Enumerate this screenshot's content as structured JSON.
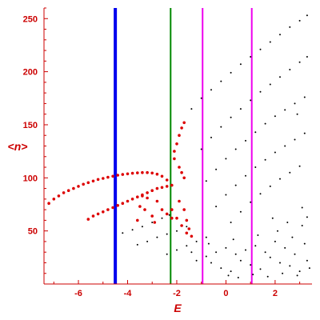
{
  "chart_data": {
    "type": "scatter",
    "title": "",
    "xlabel": "E",
    "ylabel": "<n>",
    "xlim": [
      -7.4,
      3.5
    ],
    "ylim": [
      0,
      260
    ],
    "x_ticks": [
      -6,
      -4,
      -2,
      0,
      2
    ],
    "x_tick_labels": [
      "-6",
      "-4",
      "-2",
      "0",
      "2"
    ],
    "y_ticks": [
      50,
      100,
      150,
      200,
      250
    ],
    "y_tick_labels": [
      "50",
      "100",
      "150",
      "200",
      "250"
    ],
    "grid": false,
    "axis_color": "#cc0000",
    "vertical_lines": [
      {
        "x": -4.5,
        "color": "#0000ee",
        "width": "thick"
      },
      {
        "x": -2.25,
        "color": "#008800",
        "width": "medium"
      },
      {
        "x": -0.95,
        "color": "#ee00ee",
        "width": "medium"
      },
      {
        "x": 1.05,
        "color": "#ee00ee",
        "width": "medium"
      }
    ],
    "series": [
      {
        "color": "#dd0000",
        "marker": "filled-circle",
        "points": [
          [
            -7.2,
            76
          ],
          [
            -7.0,
            80
          ],
          [
            -6.8,
            83
          ],
          [
            -6.6,
            86
          ],
          [
            -6.4,
            88
          ],
          [
            -6.2,
            90
          ],
          [
            -6.0,
            92
          ],
          [
            -5.8,
            94
          ],
          [
            -5.6,
            95.5
          ],
          [
            -5.4,
            97
          ],
          [
            -5.2,
            98.5
          ],
          [
            -5.0,
            99.5
          ],
          [
            -4.8,
            100.5
          ],
          [
            -4.6,
            101.5
          ],
          [
            -4.4,
            102.5
          ],
          [
            -4.2,
            103.2
          ],
          [
            -4.0,
            103.8
          ],
          [
            -3.8,
            104.3
          ],
          [
            -3.6,
            104.7
          ],
          [
            -3.4,
            105
          ],
          [
            -3.2,
            105
          ],
          [
            -3.0,
            104.5
          ],
          [
            -2.8,
            103.5
          ],
          [
            -2.6,
            101.5
          ],
          [
            -2.4,
            98
          ],
          [
            -5.6,
            61
          ],
          [
            -5.4,
            64
          ],
          [
            -5.2,
            66
          ],
          [
            -5.0,
            68
          ],
          [
            -4.8,
            70
          ],
          [
            -4.6,
            72
          ],
          [
            -4.4,
            74
          ],
          [
            -4.2,
            76
          ],
          [
            -4.0,
            78
          ],
          [
            -3.8,
            80
          ],
          [
            -3.6,
            82
          ],
          [
            -3.4,
            84
          ],
          [
            -3.2,
            86
          ],
          [
            -3.0,
            88
          ],
          [
            -2.8,
            90
          ],
          [
            -2.6,
            91
          ],
          [
            -2.4,
            92
          ],
          [
            -2.2,
            93
          ],
          [
            -3.4,
            83
          ],
          [
            -3.2,
            81
          ],
          [
            -2.8,
            78
          ],
          [
            -2.6,
            70
          ],
          [
            -2.4,
            66
          ],
          [
            -2.2,
            62
          ],
          [
            -2.1,
            125
          ],
          [
            -2.0,
            132
          ],
          [
            -1.9,
            140
          ],
          [
            -1.8,
            147
          ],
          [
            -1.7,
            152
          ],
          [
            -2.1,
            118
          ],
          [
            -1.9,
            110
          ],
          [
            -1.8,
            105
          ],
          [
            -1.7,
            100
          ],
          [
            -1.9,
            78
          ],
          [
            -1.7,
            70
          ],
          [
            -1.6,
            60
          ],
          [
            -1.5,
            52
          ],
          [
            -1.4,
            45
          ],
          [
            -2.2,
            70
          ],
          [
            -2.0,
            62
          ],
          [
            -1.8,
            55
          ],
          [
            -1.6,
            48
          ],
          [
            -3.5,
            73
          ],
          [
            -3.3,
            70
          ],
          [
            -3.0,
            64
          ],
          [
            -2.9,
            58
          ],
          [
            -3.6,
            60
          ]
        ]
      },
      {
        "color": "#000000",
        "marker": "dot",
        "points": [
          [
            -1.4,
            165
          ],
          [
            -1.0,
            175
          ],
          [
            -0.6,
            183
          ],
          [
            -0.2,
            191
          ],
          [
            0.2,
            199
          ],
          [
            0.6,
            207
          ],
          [
            1.0,
            214
          ],
          [
            1.4,
            221
          ],
          [
            1.8,
            228
          ],
          [
            2.2,
            235
          ],
          [
            2.6,
            242
          ],
          [
            3.0,
            248
          ],
          [
            3.3,
            253
          ],
          [
            -1.0,
            127
          ],
          [
            -0.6,
            138
          ],
          [
            -0.2,
            148
          ],
          [
            0.2,
            157
          ],
          [
            0.6,
            165
          ],
          [
            1.0,
            173
          ],
          [
            1.4,
            181
          ],
          [
            1.8,
            188
          ],
          [
            2.2,
            195
          ],
          [
            2.6,
            202
          ],
          [
            3.0,
            209
          ],
          [
            3.3,
            214
          ],
          [
            -0.8,
            97
          ],
          [
            -0.4,
            108
          ],
          [
            0.0,
            118
          ],
          [
            0.4,
            127
          ],
          [
            0.8,
            135
          ],
          [
            1.2,
            143
          ],
          [
            1.6,
            151
          ],
          [
            2.0,
            158
          ],
          [
            2.4,
            164
          ],
          [
            2.8,
            170
          ],
          [
            3.2,
            176
          ],
          [
            -0.4,
            73
          ],
          [
            0.0,
            84
          ],
          [
            0.4,
            93
          ],
          [
            0.8,
            102
          ],
          [
            1.2,
            110
          ],
          [
            1.6,
            117
          ],
          [
            2.0,
            124
          ],
          [
            2.4,
            130
          ],
          [
            2.8,
            136
          ],
          [
            3.2,
            142
          ],
          [
            0.2,
            58
          ],
          [
            0.6,
            68
          ],
          [
            1.0,
            77
          ],
          [
            1.4,
            85
          ],
          [
            1.8,
            92
          ],
          [
            2.2,
            99
          ],
          [
            2.6,
            105
          ],
          [
            3.0,
            111
          ],
          [
            -4.2,
            48
          ],
          [
            -3.8,
            51
          ],
          [
            -3.4,
            54
          ],
          [
            -3.0,
            58
          ],
          [
            -2.6,
            62
          ],
          [
            -2.3,
            65
          ],
          [
            -3.6,
            37
          ],
          [
            -3.2,
            40
          ],
          [
            -2.8,
            44
          ],
          [
            -2.4,
            47
          ],
          [
            -2.0,
            50
          ],
          [
            -1.6,
            54
          ],
          [
            -2.4,
            28
          ],
          [
            -2.0,
            32
          ],
          [
            -1.6,
            36
          ],
          [
            -1.2,
            40
          ],
          [
            -0.8,
            44
          ],
          [
            -0.6,
            20
          ],
          [
            -0.2,
            15
          ],
          [
            0.2,
            12
          ],
          [
            0.6,
            22
          ],
          [
            1.0,
            18
          ],
          [
            1.4,
            14
          ],
          [
            1.8,
            25
          ],
          [
            2.2,
            20
          ],
          [
            2.6,
            17
          ],
          [
            3.0,
            12
          ],
          [
            3.3,
            22
          ],
          [
            -0.4,
            30
          ],
          [
            0.0,
            34
          ],
          [
            0.4,
            28
          ],
          [
            0.8,
            32
          ],
          [
            1.2,
            36
          ],
          [
            1.6,
            30
          ],
          [
            2.0,
            40
          ],
          [
            2.4,
            34
          ],
          [
            2.8,
            28
          ],
          [
            3.2,
            38
          ],
          [
            -1.2,
            22
          ],
          [
            -0.8,
            26
          ],
          [
            -1.4,
            30
          ],
          [
            0.1,
            8
          ],
          [
            0.5,
            6
          ],
          [
            1.1,
            9
          ],
          [
            1.7,
            7
          ],
          [
            2.3,
            10
          ],
          [
            2.9,
            8
          ],
          [
            3.4,
            15
          ],
          [
            -0.7,
            38
          ],
          [
            0.3,
            42
          ],
          [
            1.3,
            46
          ],
          [
            2.1,
            50
          ],
          [
            2.7,
            44
          ],
          [
            3.1,
            55
          ],
          [
            2.5,
            58
          ],
          [
            3.3,
            63
          ],
          [
            1.9,
            62
          ],
          [
            2.9,
            160
          ],
          [
            3.1,
            72
          ]
        ]
      }
    ]
  }
}
